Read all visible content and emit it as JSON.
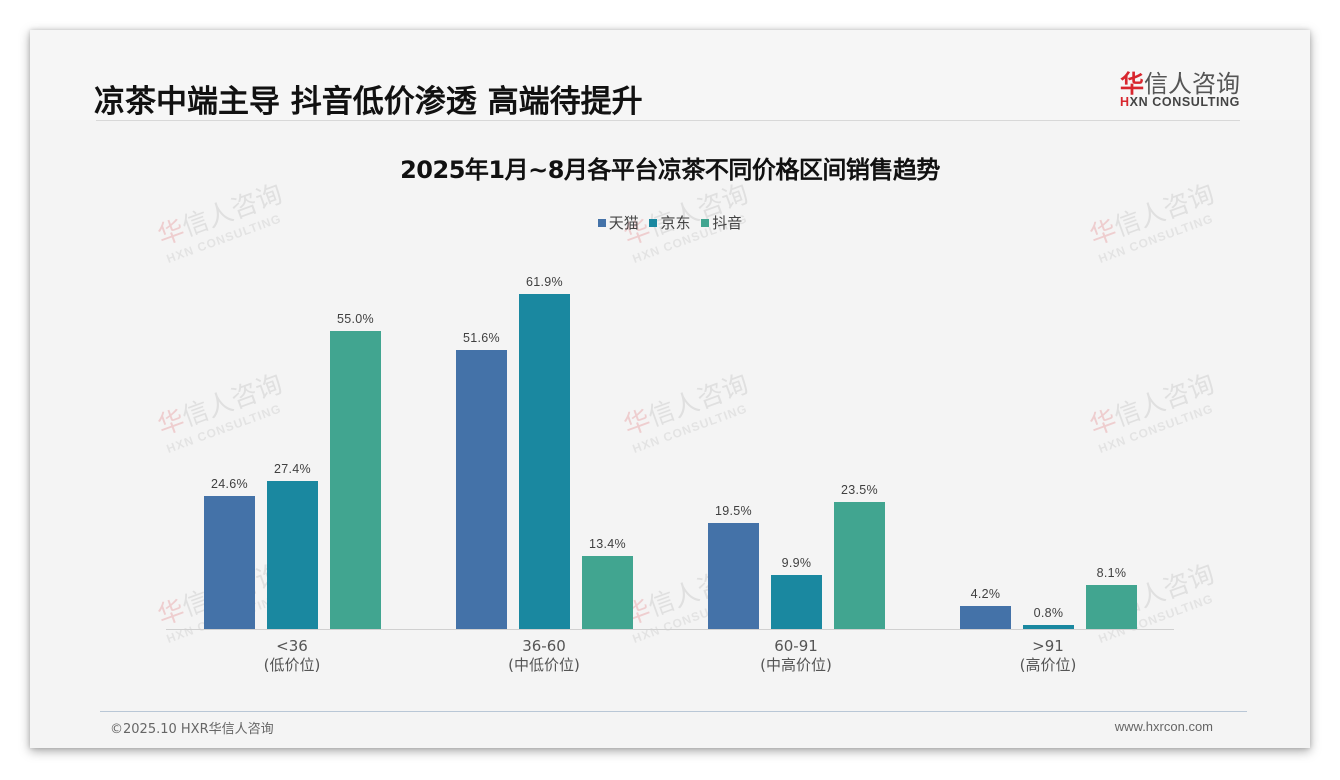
{
  "header": {
    "title": "凉茶中端主导 抖音低价渗透 高端待提升",
    "logo_cn_red": "华",
    "logo_cn_rest": "信人咨询",
    "logo_en_red": "H",
    "logo_en_rest": "XN CONSULTING"
  },
  "watermark": {
    "cn_red": "华",
    "cn_rest": "信人咨询",
    "en": "HXN CONSULTING"
  },
  "colors": {
    "tmall": "#4472a8",
    "jd": "#1a88a0",
    "douyin": "#41a590",
    "brand_red": "#d8262e"
  },
  "chart_data": {
    "type": "bar",
    "title": "2025年1月~8月各平台凉茶不同价格区间销售趋势",
    "xlabel": "",
    "ylabel": "",
    "ylim": [
      0,
      65
    ],
    "grid": false,
    "legend_position": "top",
    "categories": [
      "<36\n(低价位)",
      "36-60\n(中低价位)",
      "60-91\n(中高价位)",
      ">91\n(高价位)"
    ],
    "category_ranges": [
      "<36",
      "36-60",
      "60-91",
      ">91"
    ],
    "category_tiers": [
      "(低价位)",
      "(中低价位)",
      "(中高价位)",
      "(高价位)"
    ],
    "series": [
      {
        "name": "天猫",
        "values": [
          24.6,
          51.6,
          19.5,
          4.2
        ],
        "labels": [
          "24.6%",
          "51.6%",
          "19.5%",
          "4.2%"
        ]
      },
      {
        "name": "京东",
        "values": [
          27.4,
          61.9,
          9.9,
          0.8
        ],
        "labels": [
          "27.4%",
          "61.9%",
          "9.9%",
          "0.8%"
        ]
      },
      {
        "name": "抖音",
        "values": [
          55.0,
          13.4,
          23.5,
          8.1
        ],
        "labels": [
          "55.0%",
          "13.4%",
          "23.5%",
          "8.1%"
        ]
      }
    ],
    "value_format": "percent, 1 decimal"
  },
  "footer": {
    "copyright": "©2025.10 HXR华信人咨询",
    "website": "www.hxrcon.com"
  }
}
